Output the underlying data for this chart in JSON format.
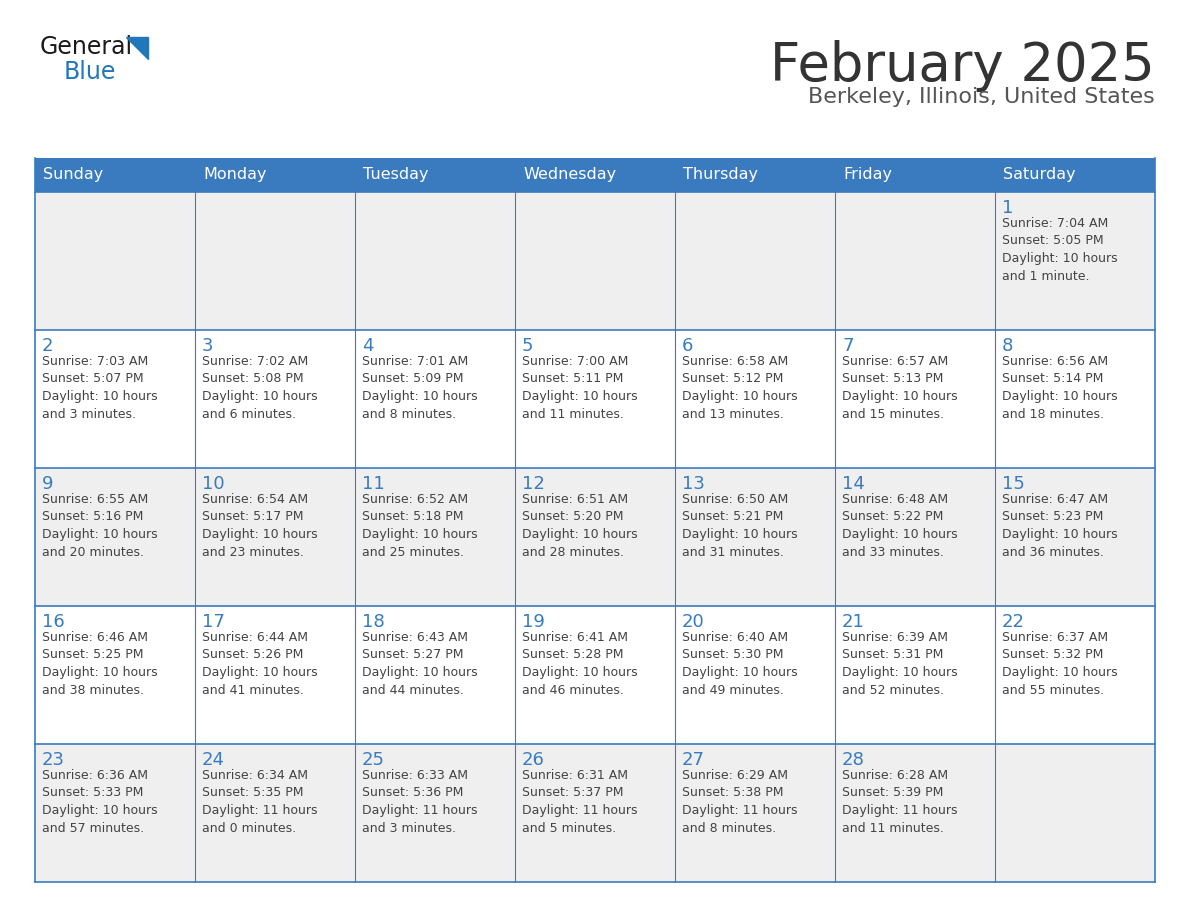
{
  "title": "February 2025",
  "subtitle": "Berkeley, Illinois, United States",
  "days_of_week": [
    "Sunday",
    "Monday",
    "Tuesday",
    "Wednesday",
    "Thursday",
    "Friday",
    "Saturday"
  ],
  "header_bg": "#3a7bbf",
  "header_text": "#ffffff",
  "cell_bg_odd": "#efefef",
  "cell_bg_even": "#ffffff",
  "cell_border": "#3a7bbf",
  "day_num_color": "#3a7bbf",
  "text_color": "#444444",
  "title_color": "#333333",
  "subtitle_color": "#555555",
  "logo_general_color": "#1a1a1a",
  "logo_blue_color": "#2277bb",
  "weeks": [
    [
      {
        "day": null,
        "info": null
      },
      {
        "day": null,
        "info": null
      },
      {
        "day": null,
        "info": null
      },
      {
        "day": null,
        "info": null
      },
      {
        "day": null,
        "info": null
      },
      {
        "day": null,
        "info": null
      },
      {
        "day": 1,
        "info": "Sunrise: 7:04 AM\nSunset: 5:05 PM\nDaylight: 10 hours\nand 1 minute."
      }
    ],
    [
      {
        "day": 2,
        "info": "Sunrise: 7:03 AM\nSunset: 5:07 PM\nDaylight: 10 hours\nand 3 minutes."
      },
      {
        "day": 3,
        "info": "Sunrise: 7:02 AM\nSunset: 5:08 PM\nDaylight: 10 hours\nand 6 minutes."
      },
      {
        "day": 4,
        "info": "Sunrise: 7:01 AM\nSunset: 5:09 PM\nDaylight: 10 hours\nand 8 minutes."
      },
      {
        "day": 5,
        "info": "Sunrise: 7:00 AM\nSunset: 5:11 PM\nDaylight: 10 hours\nand 11 minutes."
      },
      {
        "day": 6,
        "info": "Sunrise: 6:58 AM\nSunset: 5:12 PM\nDaylight: 10 hours\nand 13 minutes."
      },
      {
        "day": 7,
        "info": "Sunrise: 6:57 AM\nSunset: 5:13 PM\nDaylight: 10 hours\nand 15 minutes."
      },
      {
        "day": 8,
        "info": "Sunrise: 6:56 AM\nSunset: 5:14 PM\nDaylight: 10 hours\nand 18 minutes."
      }
    ],
    [
      {
        "day": 9,
        "info": "Sunrise: 6:55 AM\nSunset: 5:16 PM\nDaylight: 10 hours\nand 20 minutes."
      },
      {
        "day": 10,
        "info": "Sunrise: 6:54 AM\nSunset: 5:17 PM\nDaylight: 10 hours\nand 23 minutes."
      },
      {
        "day": 11,
        "info": "Sunrise: 6:52 AM\nSunset: 5:18 PM\nDaylight: 10 hours\nand 25 minutes."
      },
      {
        "day": 12,
        "info": "Sunrise: 6:51 AM\nSunset: 5:20 PM\nDaylight: 10 hours\nand 28 minutes."
      },
      {
        "day": 13,
        "info": "Sunrise: 6:50 AM\nSunset: 5:21 PM\nDaylight: 10 hours\nand 31 minutes."
      },
      {
        "day": 14,
        "info": "Sunrise: 6:48 AM\nSunset: 5:22 PM\nDaylight: 10 hours\nand 33 minutes."
      },
      {
        "day": 15,
        "info": "Sunrise: 6:47 AM\nSunset: 5:23 PM\nDaylight: 10 hours\nand 36 minutes."
      }
    ],
    [
      {
        "day": 16,
        "info": "Sunrise: 6:46 AM\nSunset: 5:25 PM\nDaylight: 10 hours\nand 38 minutes."
      },
      {
        "day": 17,
        "info": "Sunrise: 6:44 AM\nSunset: 5:26 PM\nDaylight: 10 hours\nand 41 minutes."
      },
      {
        "day": 18,
        "info": "Sunrise: 6:43 AM\nSunset: 5:27 PM\nDaylight: 10 hours\nand 44 minutes."
      },
      {
        "day": 19,
        "info": "Sunrise: 6:41 AM\nSunset: 5:28 PM\nDaylight: 10 hours\nand 46 minutes."
      },
      {
        "day": 20,
        "info": "Sunrise: 6:40 AM\nSunset: 5:30 PM\nDaylight: 10 hours\nand 49 minutes."
      },
      {
        "day": 21,
        "info": "Sunrise: 6:39 AM\nSunset: 5:31 PM\nDaylight: 10 hours\nand 52 minutes."
      },
      {
        "day": 22,
        "info": "Sunrise: 6:37 AM\nSunset: 5:32 PM\nDaylight: 10 hours\nand 55 minutes."
      }
    ],
    [
      {
        "day": 23,
        "info": "Sunrise: 6:36 AM\nSunset: 5:33 PM\nDaylight: 10 hours\nand 57 minutes."
      },
      {
        "day": 24,
        "info": "Sunrise: 6:34 AM\nSunset: 5:35 PM\nDaylight: 11 hours\nand 0 minutes."
      },
      {
        "day": 25,
        "info": "Sunrise: 6:33 AM\nSunset: 5:36 PM\nDaylight: 11 hours\nand 3 minutes."
      },
      {
        "day": 26,
        "info": "Sunrise: 6:31 AM\nSunset: 5:37 PM\nDaylight: 11 hours\nand 5 minutes."
      },
      {
        "day": 27,
        "info": "Sunrise: 6:29 AM\nSunset: 5:38 PM\nDaylight: 11 hours\nand 8 minutes."
      },
      {
        "day": 28,
        "info": "Sunrise: 6:28 AM\nSunset: 5:39 PM\nDaylight: 11 hours\nand 11 minutes."
      },
      {
        "day": null,
        "info": null
      }
    ]
  ]
}
